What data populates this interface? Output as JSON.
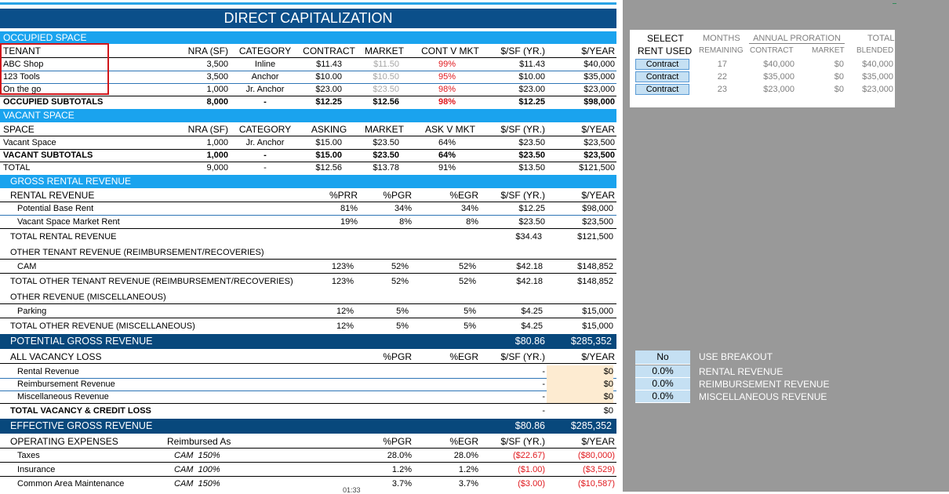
{
  "title": "DIRECT CAPITALIZATION",
  "occupied": {
    "section": "OCCUPIED SPACE",
    "headers": [
      "TENANT",
      "NRA (SF)",
      "CATEGORY",
      "CONTRACT",
      "MARKET",
      "CONT V MKT",
      "$/SF (YR.)",
      "$/YEAR"
    ],
    "rows": [
      {
        "name": "ABC Shop",
        "nra": "3,500",
        "cat": "Inline",
        "contract": "$11.43",
        "market": "$11.50",
        "cvm": "99%",
        "psf": "$11.43",
        "year": "$40,000"
      },
      {
        "name": "123 Tools",
        "nra": "3,500",
        "cat": "Anchor",
        "contract": "$10.00",
        "market": "$10.50",
        "cvm": "95%",
        "psf": "$10.00",
        "year": "$35,000"
      },
      {
        "name": "On the go",
        "nra": "1,000",
        "cat": "Jr. Anchor",
        "contract": "$23.00",
        "market": "$23.50",
        "cvm": "98%",
        "psf": "$23.00",
        "year": "$23,000"
      }
    ],
    "subtotal": {
      "label": "OCCUPIED SUBTOTALS",
      "nra": "8,000",
      "cat": "-",
      "contract": "$12.25",
      "market": "$12.56",
      "cvm": "98%",
      "psf": "$12.25",
      "year": "$98,000"
    }
  },
  "vacant": {
    "section": "VACANT SPACE",
    "headers": [
      "SPACE",
      "NRA (SF)",
      "CATEGORY",
      "ASKING",
      "MARKET",
      "ASK V MKT",
      "$/SF (YR.)",
      "$/YEAR"
    ],
    "row": {
      "name": "Vacant Space",
      "nra": "1,000",
      "cat": "Jr. Anchor",
      "asking": "$15.00",
      "market": "$23.50",
      "avm": "64%",
      "psf": "$23.50",
      "year": "$23,500"
    },
    "subtotal": {
      "label": "VACANT SUBTOTALS",
      "nra": "1,000",
      "cat": "-",
      "asking": "$15.00",
      "market": "$23.50",
      "avm": "64%",
      "psf": "$23.50",
      "year": "$23,500"
    },
    "total": {
      "label": "TOTAL",
      "nra": "9,000",
      "cat": "-",
      "asking": "$12.56",
      "market": "$13.78",
      "avm": "91%",
      "psf": "$13.50",
      "year": "$121,500"
    }
  },
  "gross": {
    "section": "GROSS RENTAL REVENUE",
    "rental_header": {
      "label": "RENTAL REVENUE",
      "c1": "%PRR",
      "c2": "%PGR",
      "c3": "%EGR",
      "c4": "$/SF (YR.)",
      "c5": "$/YEAR"
    },
    "potential_base": {
      "label": "Potential Base Rent",
      "c1": "81%",
      "c2": "34%",
      "c3": "34%",
      "c4": "$12.25",
      "c5": "$98,000"
    },
    "vacant_market": {
      "label": "Vacant Space  Market Rent",
      "c1": "19%",
      "c2": "8%",
      "c3": "8%",
      "c4": "$23.50",
      "c5": "$23,500"
    },
    "total_rental": {
      "label": "TOTAL RENTAL REVENUE",
      "c4": "$34.43",
      "c5": "$121,500"
    },
    "other_tenant_header": "OTHER TENANT REVENUE (REIMBURSEMENT/RECOVERIES)",
    "cam": {
      "label": "CAM",
      "c1": "123%",
      "c2": "52%",
      "c3": "52%",
      "c4": "$42.18",
      "c5": "$148,852"
    },
    "total_other_tenant": {
      "label": "TOTAL OTHER TENANT REVENUE (REIMBURSEMENT/RECOVERIES)",
      "c1": "123%",
      "c2": "52%",
      "c3": "52%",
      "c4": "$42.18",
      "c5": "$148,852"
    },
    "other_misc_header": "OTHER REVENUE (MISCELLANEOUS)",
    "parking": {
      "label": "Parking",
      "c1": "12%",
      "c2": "5%",
      "c3": "5%",
      "c4": "$4.25",
      "c5": "$15,000"
    },
    "total_misc": {
      "label": "TOTAL OTHER REVENUE (MISCELLANEOUS)",
      "c1": "12%",
      "c2": "5%",
      "c3": "5%",
      "c4": "$4.25",
      "c5": "$15,000"
    }
  },
  "pgr": {
    "label": "POTENTIAL GROSS REVENUE",
    "psf": "$80.86",
    "year": "$285,352"
  },
  "vacancy": {
    "header": {
      "label": "ALL VACANCY LOSS",
      "c2": "%PGR",
      "c3": "%EGR",
      "c4": "$/SF (YR.)",
      "c5": "$/YEAR"
    },
    "rows": [
      {
        "label": "Rental Revenue",
        "c4": "-",
        "c5": "$0"
      },
      {
        "label": "Reimbursement Revenue",
        "c4": "-",
        "c5": "$0"
      },
      {
        "label": "Miscellaneous Revenue",
        "c4": "-",
        "c5": "$0"
      }
    ],
    "total": {
      "label": "TOTAL VACANCY & CREDIT LOSS",
      "c4": "-",
      "c5": "$0"
    }
  },
  "egr": {
    "label": "EFFECTIVE GROSS REVENUE",
    "psf": "$80.86",
    "year": "$285,352"
  },
  "opex": {
    "header": {
      "label": "OPERATING EXPENSES",
      "reimb": "Reimbursed As",
      "c2": "%PGR",
      "c3": "%EGR",
      "c4": "$/SF (YR.)",
      "c5": "$/YEAR"
    },
    "rows": [
      {
        "label": "Taxes",
        "reimb": "CAM  150%",
        "c2": "28.0%",
        "c3": "28.0%",
        "c4": "($22.67)",
        "c5": "($80,000)"
      },
      {
        "label": "Insurance",
        "reimb": "CAM  100%",
        "c2": "1.2%",
        "c3": "1.2%",
        "c4": "($1.00)",
        "c5": "($3,529)"
      },
      {
        "label": "Common Area Maintenance",
        "reimb": "CAM  150%",
        "c2": "3.7%",
        "c3": "3.7%",
        "c4": "($3.00)",
        "c5": "($10,587)"
      }
    ]
  },
  "panel": {
    "h1": {
      "select": "SELECT",
      "months": "MONTHS",
      "annual": "ANNUAL PRORATION",
      "total": "TOTAL"
    },
    "h2": {
      "rent": "RENT USED",
      "remaining": "REMAINING",
      "contract": "CONTRACT",
      "market": "MARKET",
      "blended": "BLENDED"
    },
    "rows": [
      {
        "select": "Contract",
        "months": "17",
        "contract": "$40,000",
        "market": "$0",
        "blended": "$40,000"
      },
      {
        "select": "Contract",
        "months": "22",
        "contract": "$35,000",
        "market": "$0",
        "blended": "$35,000"
      },
      {
        "select": "Contract",
        "months": "23",
        "contract": "$23,000",
        "market": "$0",
        "blended": "$23,000"
      }
    ]
  },
  "breakout": {
    "use": {
      "value": "No",
      "label": "USE BREAKOUT"
    },
    "rows": [
      {
        "value": "0.0%",
        "label": "RENTAL REVENUE"
      },
      {
        "value": "0.0%",
        "label": "REIMBURSEMENT REVENUE"
      },
      {
        "value": "0.0%",
        "label": "MISCELLANEOUS REVENUE"
      }
    ]
  },
  "time_fragment": "01:33"
}
